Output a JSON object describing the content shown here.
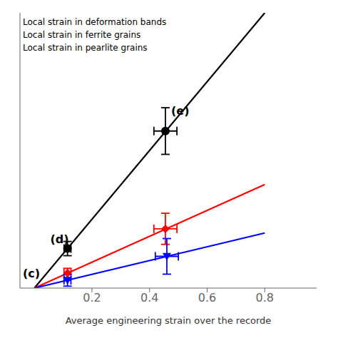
{
  "chart_data": {
    "type": "line",
    "xlabel": "Average engineering strain over the recorde",
    "xlim": [
      -0.05,
      0.98
    ],
    "xticks": [
      0.2,
      0.4,
      0.6,
      0.8
    ],
    "ylim": [
      0.0,
      0.85
    ],
    "yticks": [],
    "tick_labels": "x",
    "legend": "upper left",
    "series": [
      {
        "name": "Local strain in deformation bands",
        "color": "black",
        "marker": "circle",
        "x": [
          0.0,
          0.8
        ],
        "values": [
          0.0,
          0.85
        ],
        "points": [
          {
            "x": 0.455,
            "y": 0.485,
            "xerr": 0.04,
            "yerr": 0.072
          },
          {
            "x": 0.115,
            "y": 0.122,
            "xerr": 0.012,
            "yerr": 0.022
          }
        ]
      },
      {
        "name": "Local strain in ferrite grains",
        "color": "red",
        "marker": "diamond",
        "x": [
          0.0,
          0.8
        ],
        "values": [
          0.0,
          0.32
        ],
        "points": [
          {
            "x": 0.455,
            "y": 0.183,
            "xerr": 0.04,
            "yerr": 0.048
          },
          {
            "x": 0.115,
            "y": 0.046,
            "xerr": 0.012,
            "yerr": 0.015
          }
        ]
      },
      {
        "name": "Local strain in pearlite grains",
        "color": "blue",
        "marker": "triangle_down",
        "x": [
          0.0,
          0.8
        ],
        "values": [
          0.0,
          0.17
        ],
        "points": [
          {
            "x": 0.46,
            "y": 0.098,
            "xerr": 0.04,
            "yerr": 0.055
          },
          {
            "x": 0.115,
            "y": 0.024,
            "xerr": 0.012,
            "yerr": 0.018
          }
        ]
      }
    ],
    "annotations": [
      {
        "text": "(c)",
        "x": -0.04,
        "y": 0.032,
        "color": "black"
      },
      {
        "text": "(d)",
        "x": 0.055,
        "y": 0.138,
        "color": "black"
      },
      {
        "text": "(e)",
        "x": 0.475,
        "y": 0.535,
        "color": "black"
      }
    ]
  }
}
